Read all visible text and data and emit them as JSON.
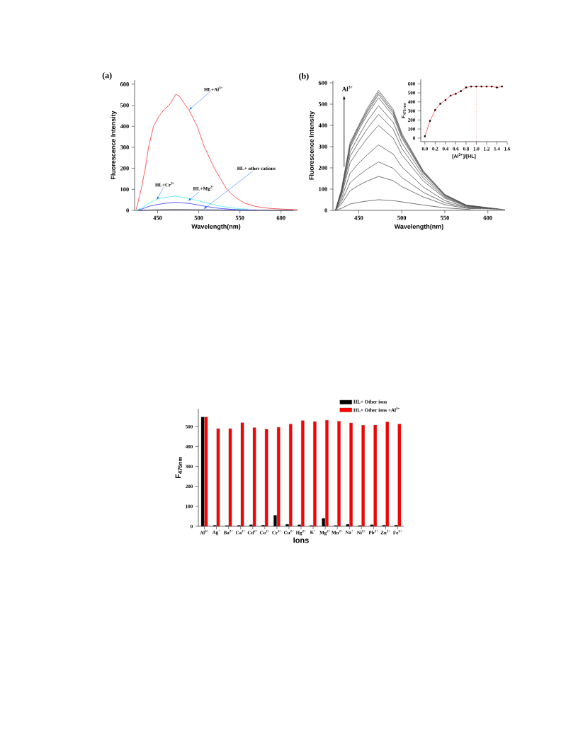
{
  "chart_data": [
    {
      "type": "line",
      "title": "(a)",
      "xlabel": "Wavelength(nm)",
      "ylabel": "Fluorescence Intensity",
      "xlim": [
        422,
        620
      ],
      "ylim": [
        0,
        620
      ],
      "xticks": [
        450,
        500,
        550,
        600
      ],
      "yticks": [
        0,
        100,
        200,
        300,
        400,
        500,
        600
      ],
      "series": [
        {
          "color": "#ff3030",
          "x": [
            424,
            430,
            435,
            439,
            445,
            452,
            458,
            464,
            468,
            472,
            476,
            482,
            488,
            493,
            498,
            507,
            519,
            534,
            545,
            556,
            570,
            585,
            600,
            620
          ],
          "values": [
            5,
            100,
            200,
            300,
            400,
            450,
            480,
            500,
            525,
            552,
            545,
            510,
            478,
            440,
            400,
            300,
            200,
            100,
            60,
            34,
            18,
            10,
            6,
            3
          ]
        },
        {
          "color": "#40f0f0",
          "x": [
            423,
            430,
            440,
            450,
            460,
            472,
            480,
            490,
            500,
            510,
            520,
            530,
            540,
            550,
            560
          ],
          "values": [
            0,
            10,
            35,
            55,
            62,
            68,
            62,
            55,
            45,
            35,
            25,
            18,
            12,
            8,
            5
          ]
        },
        {
          "color": "#3030ff",
          "x": [
            425,
            430,
            440,
            450,
            460,
            472,
            480,
            490,
            500,
            510,
            520,
            530,
            540,
            550,
            570
          ],
          "values": [
            0,
            5,
            20,
            28,
            34,
            38,
            36,
            32,
            25,
            18,
            12,
            8,
            5,
            3,
            1
          ]
        },
        {
          "color": "#202060",
          "x": [
            427,
            450,
            472,
            500,
            550,
            615
          ],
          "values": [
            0,
            3,
            4,
            3,
            1,
            0
          ]
        }
      ],
      "annotations": [
        {
          "text": "HL+Al$^{3+}$",
          "x": 488,
          "y": 478
        },
        {
          "text": "HL+Cr$^{3+}$",
          "x": 449,
          "y": 50
        },
        {
          "text": "HL+Mg$^{2+}$",
          "x": 487,
          "y": 45
        },
        {
          "text": "HL+ other cations",
          "x": 506,
          "y": 6
        }
      ]
    },
    {
      "type": "line",
      "title": "(b)",
      "xlabel": "Wavelength(nm)",
      "ylabel": "Fluorescence Intensity",
      "xlim": [
        420,
        620
      ],
      "ylim": [
        0,
        610
      ],
      "xticks": [
        450,
        500,
        550,
        600
      ],
      "yticks": [
        0,
        100,
        200,
        300,
        400,
        500,
        600
      ],
      "series": [
        {
          "color": "#505050",
          "x": [
            423,
            430,
            440,
            450,
            460,
            473,
            490,
            500,
            525,
            550,
            575,
            580
          ],
          "values": [
            0,
            10,
            30,
            38,
            44,
            50,
            46,
            40,
            25,
            12,
            5,
            4
          ]
        },
        {
          "color": "#505050",
          "x": [
            423,
            430,
            440,
            450,
            460,
            473,
            490,
            500,
            525,
            550,
            575,
            584
          ],
          "values": [
            0,
            30,
            92,
            118,
            138,
            160,
            140,
            112,
            63,
            27,
            10,
            7
          ]
        },
        {
          "color": "#505050",
          "x": [
            423,
            430,
            440,
            450,
            460,
            473,
            490,
            500,
            525,
            550,
            575,
            588
          ],
          "values": [
            0,
            42,
            130,
            165,
            195,
            228,
            198,
            155,
            85,
            36,
            13,
            7
          ]
        },
        {
          "color": "#505050",
          "x": [
            423,
            430,
            440,
            450,
            460,
            473,
            490,
            500,
            525,
            550,
            575,
            592
          ],
          "values": [
            0,
            55,
            175,
            222,
            262,
            308,
            265,
            205,
            110,
            46,
            16,
            7
          ]
        },
        {
          "color": "#505050",
          "x": [
            423,
            430,
            440,
            450,
            460,
            473,
            490,
            500,
            525,
            550,
            575,
            596
          ],
          "values": [
            0,
            70,
            225,
            285,
            340,
            400,
            340,
            262,
            138,
            57,
            19,
            7
          ]
        },
        {
          "color": "#505050",
          "x": [
            423,
            430,
            440,
            450,
            460,
            473,
            490,
            500,
            525,
            550,
            575,
            600
          ],
          "values": [
            0,
            78,
            255,
            322,
            385,
            452,
            382,
            292,
            152,
            62,
            21,
            7
          ]
        },
        {
          "color": "#505050",
          "x": [
            423,
            430,
            440,
            450,
            460,
            473,
            490,
            500,
            525,
            550,
            575,
            604
          ],
          "values": [
            0,
            85,
            275,
            350,
            420,
            492,
            415,
            318,
            165,
            66,
            22,
            6
          ]
        },
        {
          "color": "#505050",
          "x": [
            423,
            430,
            440,
            450,
            460,
            473,
            490,
            500,
            525,
            550,
            575,
            608
          ],
          "values": [
            0,
            90,
            295,
            378,
            450,
            530,
            445,
            340,
            175,
            70,
            23,
            5
          ]
        },
        {
          "color": "#505050",
          "x": [
            423,
            430,
            440,
            450,
            460,
            473,
            490,
            500,
            525,
            550,
            575,
            612
          ],
          "values": [
            0,
            92,
            305,
            388,
            462,
            545,
            457,
            349,
            179,
            72,
            24,
            5
          ]
        },
        {
          "color": "#505050",
          "x": [
            423,
            430,
            440,
            450,
            460,
            473,
            490,
            500,
            525,
            550,
            575,
            616
          ],
          "values": [
            0,
            95,
            310,
            395,
            470,
            555,
            465,
            355,
            182,
            73,
            24,
            4
          ]
        },
        {
          "color": "#505050",
          "x": [
            423,
            430,
            440,
            450,
            460,
            473,
            490,
            500,
            525,
            550,
            575,
            620
          ],
          "values": [
            0,
            100,
            320,
            400,
            480,
            565,
            475,
            363,
            186,
            75,
            25,
            3
          ]
        }
      ],
      "annotations": [
        "Al$^{3+}$"
      ]
    },
    {
      "type": "line",
      "xlabel": "[Al$^{3+}$]/[HL]",
      "ylabel": "F$_{475 nm}$",
      "xlim": [
        -0.08,
        1.6
      ],
      "ylim": [
        -40,
        650
      ],
      "marker": "square",
      "xticks": [
        {
          "value": 0,
          "label": "0.0"
        },
        {
          "value": 0.2,
          "label": "0.2"
        },
        {
          "value": 0.4,
          "label": "0.4"
        },
        {
          "value": 0.6,
          "label": "0.6"
        },
        {
          "value": 0.8,
          "label": "0.8"
        },
        {
          "value": 1.0,
          "label": "1.0"
        },
        {
          "value": 1.2,
          "label": "1.2"
        },
        {
          "value": 1.4,
          "label": "1.4"
        },
        {
          "value": 1.6,
          "label": "1.6"
        }
      ],
      "yticks": [
        0,
        100,
        200,
        300,
        400,
        500,
        600
      ],
      "x": [
        0,
        0.1,
        0.2,
        0.3,
        0.4,
        0.5,
        0.6,
        0.7,
        0.8,
        0.9,
        1.0,
        1.1,
        1.2,
        1.3,
        1.4,
        1.5
      ],
      "series": [
        {
          "color": "#ff4040",
          "values": [
            20,
            190,
            310,
            380,
            420,
            470,
            490,
            520,
            560,
            570,
            570,
            570,
            570,
            570,
            560,
            570
          ]
        }
      ],
      "ref_lines": [
        {
          "axis": "x",
          "value": 1.0,
          "color": "#ff0000",
          "line_style": "dotted"
        }
      ]
    },
    {
      "type": "bar",
      "xlabel": "Ions",
      "ylabel": "F$_{475nm}$",
      "ylim": [
        0,
        590
      ],
      "yticks": [
        0,
        100,
        200,
        300,
        400,
        500
      ],
      "legend": "top right",
      "categories": [
        "Al$^{3+}$",
        "Ag$^{+}$",
        "Ba$^{2+}$",
        "Ca$^{2+}$",
        "Cd$^{2+}$",
        "Co$^{2+}$",
        "Cr$^{3+}$",
        "Cu$^{2+}$",
        "Hg$^{2+}$",
        "K$^{+}$",
        "Mg$^{2+}$",
        "Mn$^{2+}$",
        "Na$^{+}$",
        "Ni$^{2+}$",
        "Pb$^{2+}$",
        "Zn$^{2+}$",
        "Fe$^{3+}$"
      ],
      "series": [
        {
          "name": "HL+ Other ions",
          "color": "#000000",
          "values": [
            548,
            5,
            4,
            5,
            8,
            6,
            55,
            10,
            8,
            4,
            40,
            4,
            10,
            4,
            8,
            6,
            6
          ]
        },
        {
          "name": "HL+ Other ions +Al$^{3+}$",
          "color": "#ff0000",
          "values": [
            548,
            490,
            490,
            520,
            495,
            487,
            497,
            513,
            530,
            525,
            532,
            527,
            519,
            507,
            508,
            523,
            513
          ]
        }
      ]
    }
  ]
}
